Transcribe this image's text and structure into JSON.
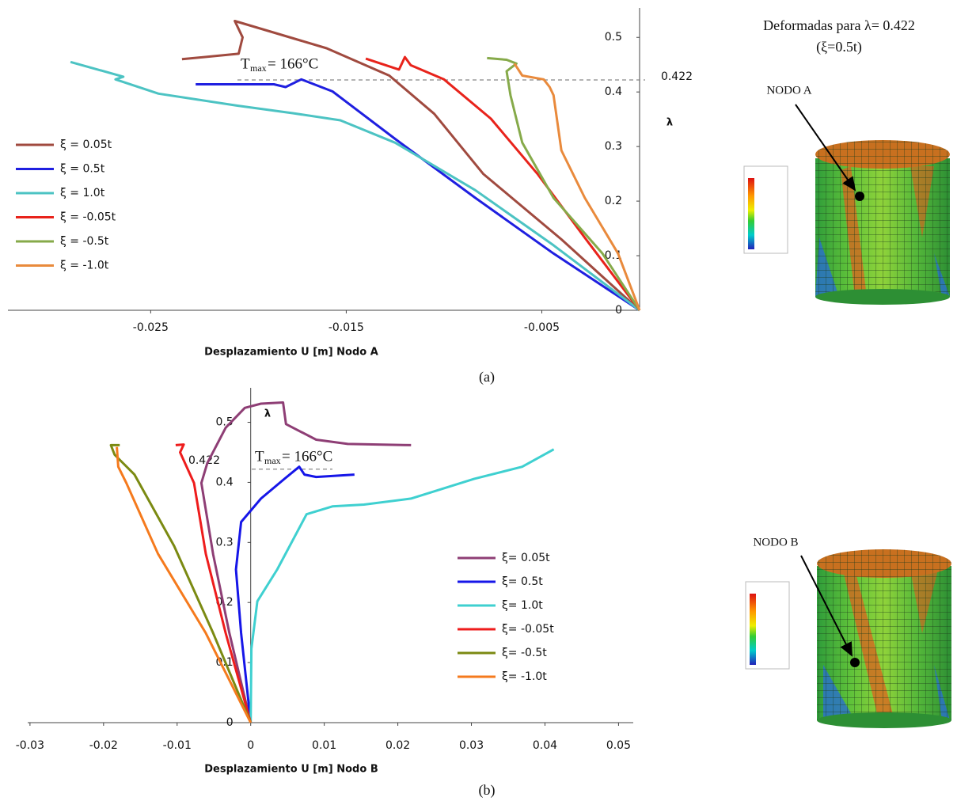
{
  "chart_data": [
    {
      "type": "line",
      "caption": "(a)",
      "x_label": "Desplazamiento U [m] Nodo A",
      "y_label": "λ",
      "xlim": [
        -0.0323,
        0
      ],
      "ylim": [
        0,
        0.554
      ],
      "xticks": [
        -0.025,
        -0.015,
        -0.005
      ],
      "yticks": [
        0,
        0.1,
        0.2,
        0.3,
        0.4,
        0.5
      ],
      "ref_line": 0.422,
      "annotation": {
        "symbol": "T",
        "subscript": "max",
        "text": "= 166°C"
      },
      "series": [
        {
          "name": "ξ = 0.05t",
          "color": "#a04a3f",
          "x": [
            0,
            -0.004,
            -0.008,
            -0.0105,
            -0.0128,
            -0.016,
            -0.0207,
            -0.0203,
            -0.0205,
            -0.0234
          ],
          "values": [
            0,
            0.13,
            0.25,
            0.36,
            0.43,
            0.48,
            0.53,
            0.5,
            0.47,
            0.46
          ]
        },
        {
          "name": "ξ = 0.5t",
          "color": "#1f1fe0",
          "x": [
            0,
            -0.0044,
            -0.0084,
            -0.0125,
            -0.0157,
            -0.0173,
            -0.0181,
            -0.0187,
            -0.0227
          ],
          "values": [
            0,
            0.104,
            0.206,
            0.314,
            0.401,
            0.423,
            0.409,
            0.414,
            0.414
          ]
        },
        {
          "name": "ξ = 1.0t",
          "color": "#4cc3c3",
          "x": [
            0,
            -0.0044,
            -0.0084,
            -0.0125,
            -0.0153,
            -0.0177,
            -0.0206,
            -0.0246,
            -0.0268,
            -0.0264,
            -0.0291
          ],
          "values": [
            0,
            0.119,
            0.22,
            0.307,
            0.348,
            0.361,
            0.375,
            0.397,
            0.423,
            0.428,
            0.455
          ]
        },
        {
          "name": "ξ = -0.05t",
          "color": "#e8231b",
          "x": [
            0,
            -0.0028,
            -0.0052,
            -0.0076,
            -0.01,
            -0.0117,
            -0.012,
            -0.0123,
            -0.014
          ],
          "values": [
            0,
            0.133,
            0.249,
            0.351,
            0.423,
            0.449,
            0.464,
            0.441,
            0.461
          ]
        },
        {
          "name": "ξ = -0.5t",
          "color": "#86aa4a",
          "x": [
            0,
            -0.0019,
            -0.0044,
            -0.006,
            -0.0066,
            -0.0068,
            -0.0063,
            -0.0068,
            -0.0078
          ],
          "values": [
            0,
            0.104,
            0.206,
            0.307,
            0.394,
            0.438,
            0.452,
            0.459,
            0.462
          ]
        },
        {
          "name": "ξ = -1.0t",
          "color": "#e98a3c",
          "x": [
            0,
            -0.0011,
            -0.0028,
            -0.004,
            -0.0044,
            -0.0046,
            -0.0049,
            -0.006,
            -0.0064
          ],
          "values": [
            0,
            0.104,
            0.206,
            0.293,
            0.394,
            0.409,
            0.423,
            0.43,
            0.452
          ]
        }
      ]
    },
    {
      "type": "line",
      "caption": "(b)",
      "x_label": "Desplazamiento U [m] Nodo B",
      "y_label": "λ",
      "xlim": [
        -0.033,
        0.052
      ],
      "ylim": [
        0,
        0.56
      ],
      "xticks": [
        -0.03,
        -0.02,
        -0.01,
        0,
        0.01,
        0.02,
        0.03,
        0.04,
        0.05
      ],
      "yticks": [
        0,
        0.1,
        0.2,
        0.3,
        0.4,
        0.5
      ],
      "ref_line": 0.422,
      "annotation": {
        "symbol": "T",
        "subscript": "max",
        "text": "= 166°C"
      },
      "series": [
        {
          "name": "ξ= 0.05t",
          "color": "#8e3e75",
          "x": [
            0,
            -0.0029,
            -0.0051,
            -0.0067,
            -0.0059,
            -0.0034,
            -0.0008,
            0.0014,
            0.0044,
            0.0048,
            0.0089,
            0.0132,
            0.0218
          ],
          "values": [
            0,
            0.149,
            0.28,
            0.399,
            0.432,
            0.491,
            0.524,
            0.531,
            0.533,
            0.497,
            0.471,
            0.464,
            0.462
          ]
        },
        {
          "name": "ξ= 0.5t",
          "color": "#1616e8",
          "x": [
            0,
            -0.0013,
            -0.002,
            -0.0013,
            0.0014,
            0.0046,
            0.0066,
            0.0073,
            0.0089,
            0.0141
          ],
          "values": [
            0,
            0.149,
            0.255,
            0.334,
            0.373,
            0.406,
            0.426,
            0.413,
            0.409,
            0.413
          ]
        },
        {
          "name": "ξ= 1.0t",
          "color": "#3fd0d0",
          "x": [
            0,
            0.0001,
            0.0009,
            0.0036,
            0.0076,
            0.0111,
            0.0154,
            0.0218,
            0.0304,
            0.0369,
            0.0412
          ],
          "values": [
            0,
            0.123,
            0.202,
            0.255,
            0.347,
            0.36,
            0.363,
            0.373,
            0.406,
            0.426,
            0.455
          ]
        },
        {
          "name": "ξ= -0.05t",
          "color": "#ee1c1c",
          "x": [
            0,
            -0.0034,
            -0.0061,
            -0.0077,
            -0.0096,
            -0.0091,
            -0.0102
          ],
          "values": [
            0,
            0.149,
            0.281,
            0.399,
            0.45,
            0.463,
            0.462
          ]
        },
        {
          "name": "ξ= -0.5t",
          "color": "#7b8a12",
          "x": [
            0,
            -0.0051,
            -0.0104,
            -0.0158,
            -0.0185,
            -0.019,
            -0.0178
          ],
          "values": [
            0,
            0.149,
            0.294,
            0.413,
            0.446,
            0.462,
            0.462
          ]
        },
        {
          "name": "ξ= -1.0t",
          "color": "#f57a1d",
          "x": [
            0,
            -0.0061,
            -0.0126,
            -0.0169,
            -0.018,
            -0.0182
          ],
          "values": [
            0,
            0.149,
            0.281,
            0.399,
            0.426,
            0.459
          ]
        }
      ]
    }
  ],
  "side_panel": {
    "title": "Deformadas  para λ= 0.422",
    "subtitle": "(ξ=0.5t)",
    "node_a": "NODO A",
    "node_b": "NODO B"
  }
}
